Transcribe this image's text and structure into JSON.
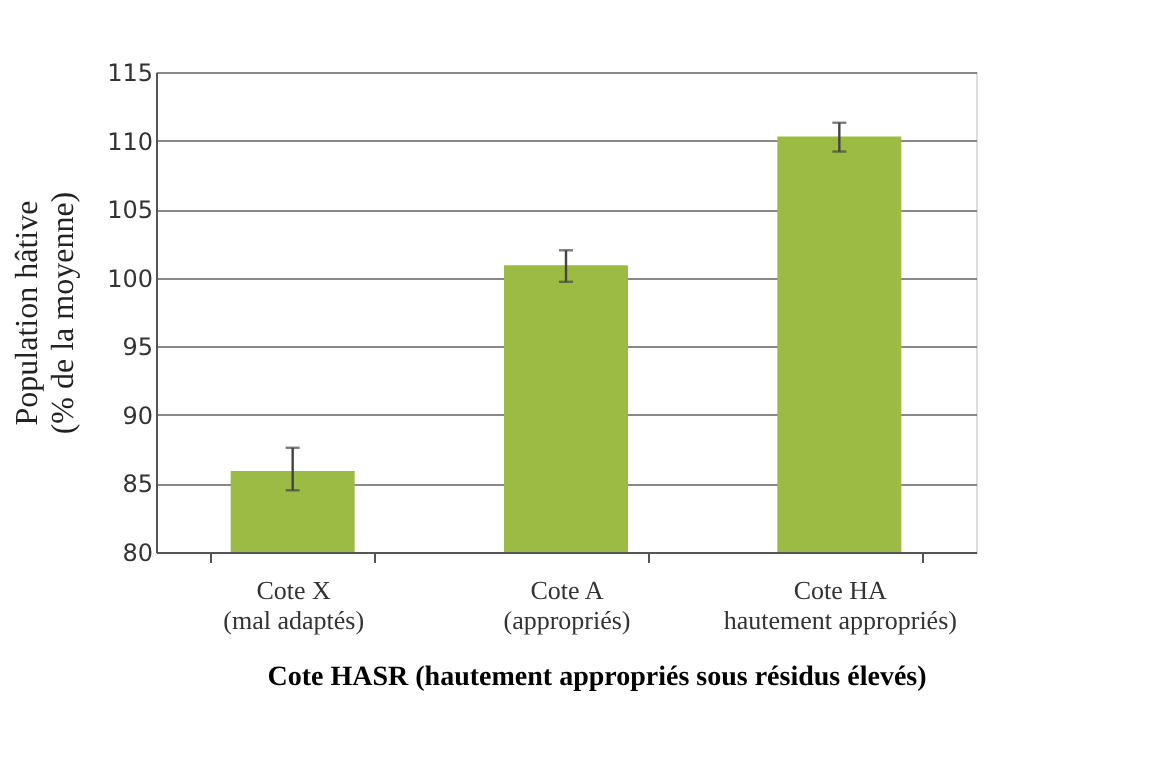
{
  "chart_data": {
    "type": "bar",
    "categories": [
      "Cote X\n(mal adaptés)",
      "Cote A\n(appropriés)",
      "Cote HA\nhautement appropriés)"
    ],
    "values": [
      85.9,
      100.9,
      110.3
    ],
    "color": "#9bbb45",
    "errors": [
      [
        84.5,
        87.6
      ],
      [
        99.7,
        102.0
      ],
      [
        109.2,
        111.3
      ]
    ],
    "ylabel": "Population hâtive\n(% de la moyenne)",
    "xlabel": "Cote HASR (hautement appropriés sous résidus élevés)",
    "ylim": [
      80,
      115
    ],
    "yticks": [
      80,
      85,
      90,
      95,
      100,
      105,
      110,
      115
    ],
    "grid": "y"
  }
}
